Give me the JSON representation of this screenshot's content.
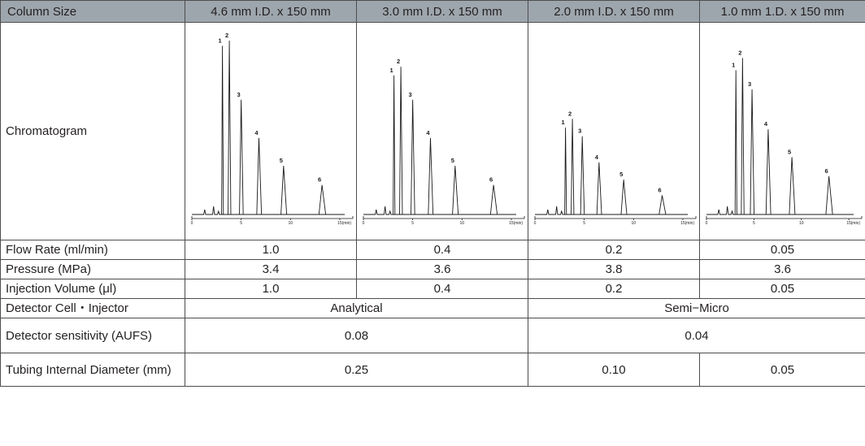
{
  "header": {
    "row_label": "Column Size",
    "columns": [
      "4.6 mm I.D. x 150 mm",
      "3.0 mm I.D. x 150 mm",
      "2.0 mm I.D. x 150 mm",
      "1.0 mm 1.D. x 150 mm"
    ]
  },
  "chromatogram": {
    "label": "Chromatogram",
    "peak_labels": [
      "1",
      "2",
      "3",
      "4",
      "5",
      "6"
    ],
    "tick_labels": [
      "0",
      "5",
      "10",
      "15"
    ],
    "unit": "(min)",
    "panels": [
      {
        "retention_min": [
          3.1,
          3.8,
          5.0,
          6.8,
          9.3,
          13.2
        ],
        "heights": [
          0.97,
          1.0,
          0.66,
          0.44,
          0.28,
          0.17
        ]
      },
      {
        "retention_min": [
          3.1,
          3.8,
          5.0,
          6.8,
          9.3,
          13.2
        ],
        "heights": [
          0.8,
          0.85,
          0.66,
          0.44,
          0.28,
          0.17
        ]
      },
      {
        "retention_min": [
          3.1,
          3.8,
          4.8,
          6.5,
          9.0,
          12.9
        ],
        "heights": [
          0.5,
          0.55,
          0.45,
          0.3,
          0.2,
          0.11
        ]
      },
      {
        "retention_min": [
          3.1,
          3.8,
          4.8,
          6.5,
          9.0,
          12.9
        ],
        "heights": [
          0.83,
          0.9,
          0.72,
          0.49,
          0.33,
          0.22
        ]
      }
    ]
  },
  "flow_rate": {
    "label": "Flow Rate (ml/min)",
    "values": [
      "1.0",
      "0.4",
      "0.2",
      "0.05"
    ]
  },
  "pressure": {
    "label": "Pressure (MPa)",
    "values": [
      "3.4",
      "3.6",
      "3.8",
      "3.6"
    ]
  },
  "injection_volume": {
    "label": "Injection Volume (μl)",
    "values": [
      "1.0",
      "0.4",
      "0.2",
      "0.05"
    ]
  },
  "detector_cell": {
    "label": "Detector Cell・Injector",
    "values": [
      "Analytical",
      "Semi−Micro"
    ]
  },
  "detector_sensitivity": {
    "label": "Detector sensitivity (AUFS)",
    "values": [
      "0.08",
      "0.04"
    ]
  },
  "tubing_diameter": {
    "label": "Tubing Internal Diameter (mm)",
    "values": [
      "0.25",
      "0.10",
      "0.05"
    ]
  }
}
